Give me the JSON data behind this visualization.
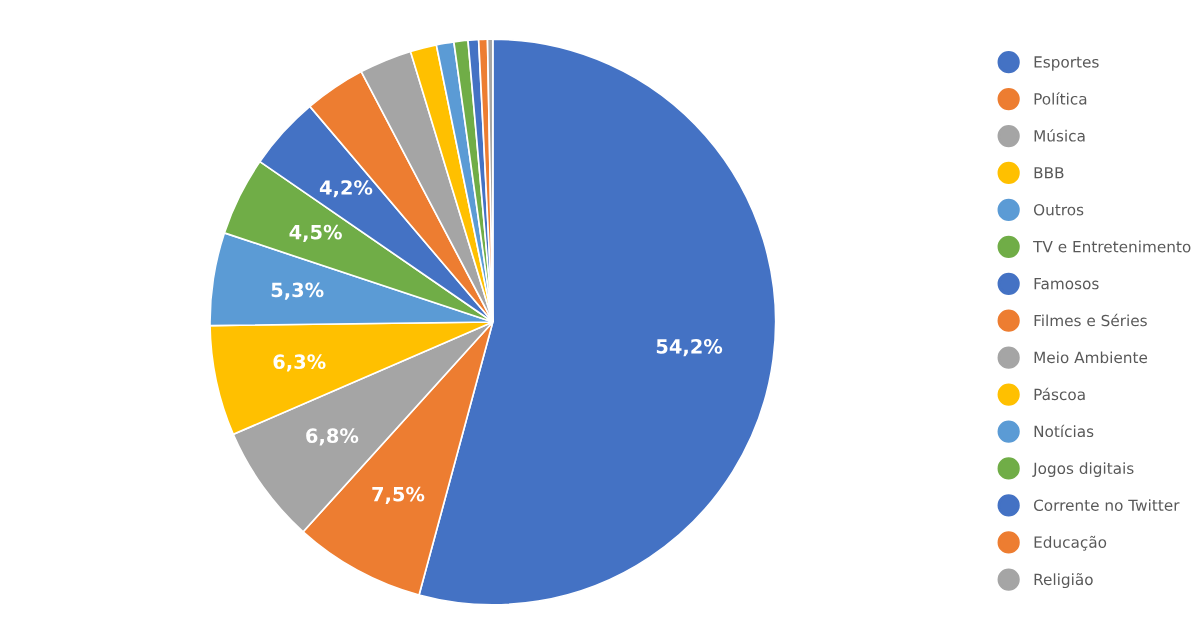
{
  "chart_data": {
    "type": "pie",
    "categories": [
      "Esportes",
      "Política",
      "Música",
      "BBB",
      "Outros",
      "TV e Entretenimento",
      "Famosos",
      "Filmes e Séries",
      "Meio Ambiente",
      "Páscoa",
      "Notícias",
      "Jogos digitais",
      "Corrente no Twitter",
      "Educação",
      "Religião"
    ],
    "values": [
      54.2,
      7.5,
      6.8,
      6.3,
      5.3,
      4.5,
      4.2,
      3.5,
      3.0,
      1.5,
      1.0,
      0.8,
      0.6,
      0.5,
      0.3
    ],
    "colors": [
      "#4472c4",
      "#ed7d31",
      "#a5a5a5",
      "#ffc000",
      "#5b9bd5",
      "#70ad47",
      "#4472c4",
      "#ed7d31",
      "#a5a5a5",
      "#ffc000",
      "#5b9bd5",
      "#70ad47",
      "#4472c4",
      "#ed7d31",
      "#a5a5a5"
    ],
    "value_labels": [
      "54,2%",
      "7,5%",
      "6,8%",
      "6,3%",
      "5,3%",
      "4,5%",
      "4,2%",
      null,
      null,
      null,
      null,
      null,
      null,
      null,
      null
    ],
    "legend": "right"
  }
}
